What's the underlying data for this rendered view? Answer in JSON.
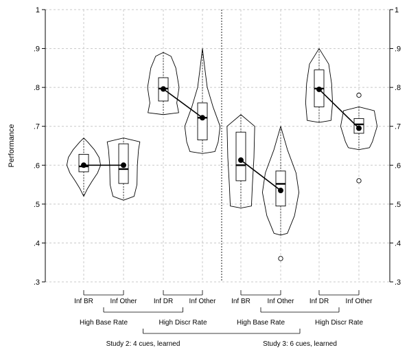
{
  "chart_data": {
    "type": "violin",
    "ylabel": "Performance",
    "ylim": [
      0.3,
      1.0
    ],
    "yticks": [
      {
        "value": 0.3,
        "label": ".3"
      },
      {
        "value": 0.4,
        "label": ".4"
      },
      {
        "value": 0.5,
        "label": ".5"
      },
      {
        "value": 0.6,
        "label": ".6"
      },
      {
        "value": 0.7,
        "label": ".7"
      },
      {
        "value": 0.8,
        "label": ".8"
      },
      {
        "value": 0.9,
        "label": ".9"
      },
      {
        "value": 1.0,
        "label": "1"
      }
    ],
    "grid": true,
    "groups": [
      {
        "label": "Inf BR",
        "mean": 0.6,
        "median": 0.597,
        "q1": 0.583,
        "q3": 0.628,
        "whisker_low": 0.52,
        "whisker_high": 0.67,
        "violin": [
          [
            0.52,
            0.0
          ],
          [
            0.54,
            0.2
          ],
          [
            0.56,
            0.45
          ],
          [
            0.58,
            0.72
          ],
          [
            0.6,
            0.88
          ],
          [
            0.62,
            0.8
          ],
          [
            0.64,
            0.55
          ],
          [
            0.66,
            0.2
          ],
          [
            0.67,
            0.0
          ]
        ],
        "outliers": []
      },
      {
        "label": "Inf Other",
        "mean": 0.6,
        "median": 0.59,
        "q1": 0.553,
        "q3": 0.655,
        "whisker_low": 0.51,
        "whisker_high": 0.67,
        "violin": [
          [
            0.51,
            0.0
          ],
          [
            0.52,
            0.55
          ],
          [
            0.55,
            0.7
          ],
          [
            0.6,
            0.72
          ],
          [
            0.64,
            0.78
          ],
          [
            0.66,
            0.85
          ],
          [
            0.67,
            0.0
          ]
        ],
        "outliers": []
      },
      {
        "label": "Inf DR",
        "mean": 0.796,
        "median": 0.797,
        "q1": 0.765,
        "q3": 0.825,
        "whisker_low": 0.73,
        "whisker_high": 0.89,
        "violin": [
          [
            0.73,
            0.0
          ],
          [
            0.735,
            0.8
          ],
          [
            0.76,
            0.7
          ],
          [
            0.8,
            0.82
          ],
          [
            0.85,
            0.65
          ],
          [
            0.88,
            0.4
          ],
          [
            0.89,
            0.0
          ]
        ],
        "outliers": []
      },
      {
        "label": "Inf Other",
        "mean": 0.722,
        "median": 0.722,
        "q1": 0.665,
        "q3": 0.76,
        "whisker_low": 0.63,
        "whisker_high": 0.9,
        "violin": [
          [
            0.63,
            0.0
          ],
          [
            0.635,
            0.65
          ],
          [
            0.66,
            0.82
          ],
          [
            0.7,
            0.92
          ],
          [
            0.75,
            0.55
          ],
          [
            0.8,
            0.25
          ],
          [
            0.85,
            0.12
          ],
          [
            0.9,
            0.0
          ]
        ],
        "outliers": []
      },
      {
        "label": "Inf BR",
        "mean": 0.613,
        "median": 0.6,
        "q1": 0.56,
        "q3": 0.685,
        "whisker_low": 0.49,
        "whisker_high": 0.73,
        "violin": [
          [
            0.49,
            0.0
          ],
          [
            0.495,
            0.55
          ],
          [
            0.55,
            0.6
          ],
          [
            0.62,
            0.68
          ],
          [
            0.7,
            0.72
          ],
          [
            0.73,
            0.0
          ]
        ],
        "outliers": []
      },
      {
        "label": "Inf Other",
        "mean": 0.535,
        "median": 0.552,
        "q1": 0.495,
        "q3": 0.585,
        "whisker_low": 0.42,
        "whisker_high": 0.7,
        "violin": [
          [
            0.42,
            0.0
          ],
          [
            0.425,
            0.35
          ],
          [
            0.47,
            0.72
          ],
          [
            0.53,
            0.95
          ],
          [
            0.58,
            0.8
          ],
          [
            0.64,
            0.35
          ],
          [
            0.7,
            0.0
          ]
        ],
        "outliers": [
          0.36
        ]
      },
      {
        "label": "Inf DR",
        "mean": 0.795,
        "median": 0.797,
        "q1": 0.75,
        "q3": 0.845,
        "whisker_low": 0.71,
        "whisker_high": 0.9,
        "violin": [
          [
            0.71,
            0.0
          ],
          [
            0.715,
            0.62
          ],
          [
            0.76,
            0.7
          ],
          [
            0.81,
            0.65
          ],
          [
            0.86,
            0.5
          ],
          [
            0.9,
            0.0
          ]
        ],
        "outliers": []
      },
      {
        "label": "Inf Other",
        "mean": 0.695,
        "median": 0.705,
        "q1": 0.682,
        "q3": 0.72,
        "whisker_low": 0.64,
        "whisker_high": 0.75,
        "violin": [
          [
            0.64,
            0.0
          ],
          [
            0.645,
            0.55
          ],
          [
            0.66,
            0.7
          ],
          [
            0.7,
            0.95
          ],
          [
            0.74,
            0.8
          ],
          [
            0.75,
            0.0
          ]
        ],
        "outliers": [
          0.78,
          0.56
        ]
      }
    ],
    "mean_links": [
      [
        0,
        1
      ],
      [
        2,
        3
      ],
      [
        4,
        5
      ],
      [
        6,
        7
      ]
    ],
    "condition_labels": [
      "High Base Rate",
      "High Discr Rate",
      "High Base Rate",
      "High Discr Rate"
    ],
    "study_labels": [
      "Study 2: 4 cues, learned",
      "Study 3: 6 cues, learned"
    ]
  }
}
